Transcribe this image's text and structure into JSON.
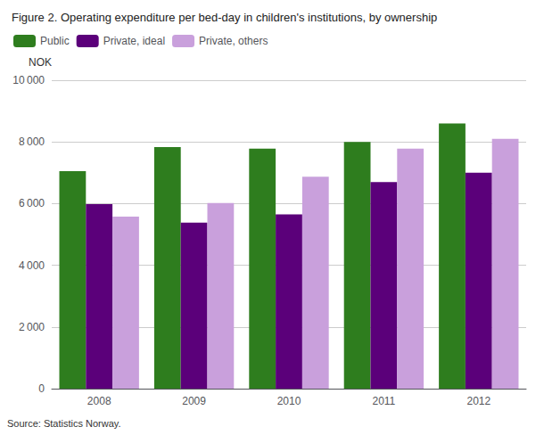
{
  "chart_data": {
    "type": "bar",
    "title": "Figure 2. Operating expenditure per bed-day in children's institutions, by ownership",
    "ylabel": "NOK",
    "annotations": [
      "Source: Statistics Norway."
    ],
    "categories": [
      "2008",
      "2009",
      "2010",
      "2011",
      "2012"
    ],
    "series": [
      {
        "name": "Public",
        "color": "#2e7d1e",
        "values": [
          7050,
          7830,
          7780,
          8000,
          8600
        ]
      },
      {
        "name": "Private, ideal",
        "color": "#5b007a",
        "values": [
          5980,
          5380,
          5650,
          6700,
          7000
        ]
      },
      {
        "name": "Private, others",
        "color": "#c9a0dc",
        "values": [
          5580,
          6020,
          6870,
          7780,
          8100
        ]
      }
    ],
    "ylim": [
      0,
      10000
    ],
    "yticks": [
      0,
      {
        "value": 2000,
        "label": "2 000"
      },
      {
        "value": 4000,
        "label": "4 000"
      },
      {
        "value": 6000,
        "label": "6 000"
      },
      {
        "value": 8000,
        "label": "8 000"
      },
      {
        "value": 10000,
        "label": "10 000"
      }
    ],
    "grid": true,
    "legend": "upper left"
  }
}
